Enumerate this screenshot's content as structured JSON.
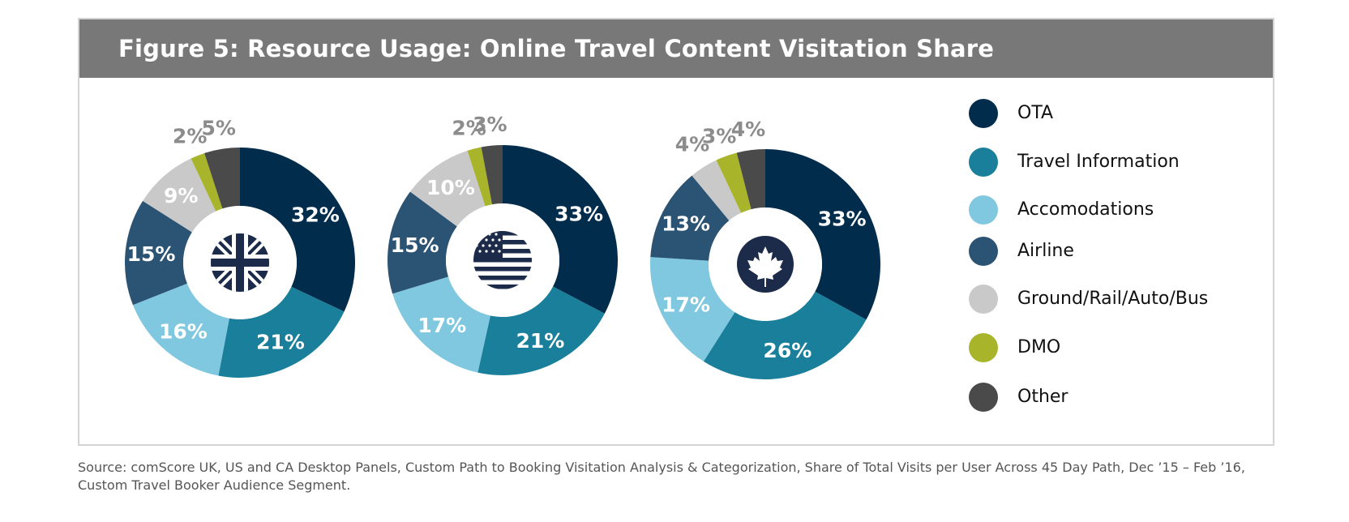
{
  "header": {
    "title": "Figure 5: Resource Usage: Online Travel Content Visitation Share"
  },
  "colors": {
    "OTA": "#022c4c",
    "Travel Information": "#1a7f9a",
    "Accomodations": "#7fc8df",
    "Airline": "#2b5373",
    "Ground/Rail/Auto/Bus": "#c9c9c9",
    "DMO": "#a8b52a",
    "Other": "#4a4a4a",
    "title_bar": "#787878"
  },
  "chart_data": [
    {
      "type": "pie",
      "center_icon": "uk-flag-icon",
      "categories": [
        "OTA",
        "Travel Information",
        "Accomodations",
        "Airline",
        "Ground/Rail/Auto/Bus",
        "DMO",
        "Other"
      ],
      "values": [
        32,
        21,
        16,
        15,
        9,
        2,
        5
      ],
      "labels": [
        "32%",
        "21%",
        "16%",
        "15%",
        "9%",
        "2%",
        "5%"
      ]
    },
    {
      "type": "pie",
      "center_icon": "us-flag-icon",
      "categories": [
        "OTA",
        "Travel Information",
        "Accomodations",
        "Airline",
        "Ground/Rail/Auto/Bus",
        "DMO",
        "Other"
      ],
      "values": [
        33,
        21,
        17,
        15,
        10,
        2,
        3
      ],
      "labels": [
        "33%",
        "21%",
        "17%",
        "15%",
        "10%",
        "2%",
        "3%"
      ]
    },
    {
      "type": "pie",
      "center_icon": "canada-flag-icon",
      "categories": [
        "OTA",
        "Travel Information",
        "Accomodations",
        "Airline",
        "Ground/Rail/Auto/Bus",
        "DMO",
        "Other"
      ],
      "values": [
        33,
        26,
        17,
        13,
        4,
        3,
        4
      ],
      "labels": [
        "33%",
        "26%",
        "17%",
        "13%",
        "4%",
        "3%",
        "4%"
      ]
    }
  ],
  "legend": {
    "placement": "right",
    "items": [
      {
        "label": "OTA",
        "color": "#022c4c"
      },
      {
        "label": "Travel Information",
        "color": "#1a7f9a"
      },
      {
        "label": "Accomodations",
        "color": "#7fc8df"
      },
      {
        "label": "Airline",
        "color": "#2b5373"
      },
      {
        "label": "Ground/Rail/Auto/Bus",
        "color": "#c9c9c9"
      },
      {
        "label": "DMO",
        "color": "#a8b52a"
      },
      {
        "label": "Other",
        "color": "#4a4a4a"
      }
    ]
  },
  "source": "Source: comScore UK, US and CA Desktop Panels, Custom Path to Booking Visitation Analysis & Categorization, Share of Total Visits per User Across 45 Day Path, Dec ’15 – Feb ’16, Custom Travel Booker Audience Segment."
}
